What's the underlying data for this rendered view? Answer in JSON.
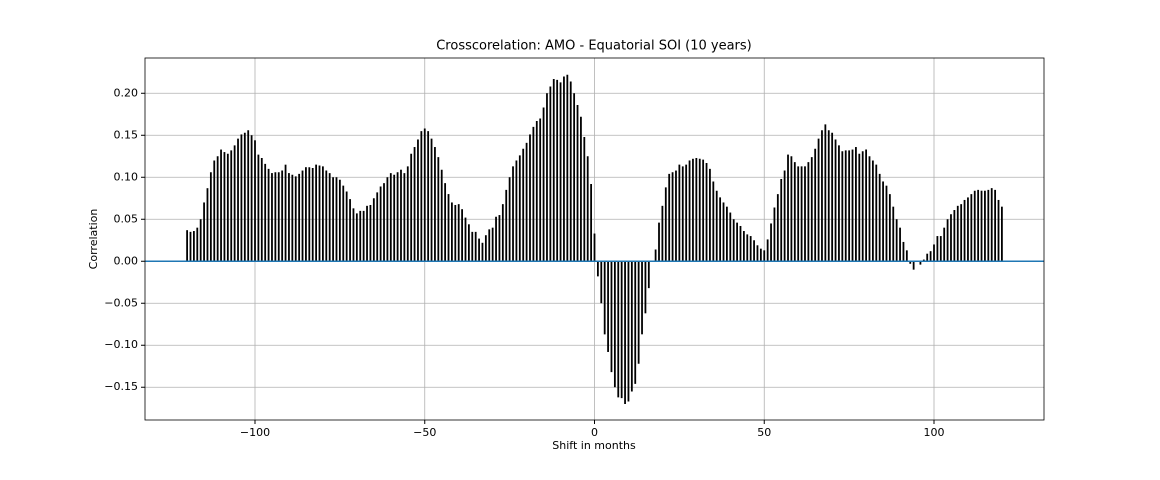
{
  "chart_data": {
    "type": "stem",
    "title": "Crosscorelation: AMO - Equatorial SOI (10 years)",
    "x_label": "Shift in months",
    "y_label": "Correlation",
    "color": "#000000",
    "zero_line_color": "#1f77b4",
    "grid": true,
    "xlim": [
      -132.4,
      132.4
    ],
    "ylim": [
      -0.189,
      0.242
    ],
    "xticks": [
      {
        "value": -100,
        "label": "−100"
      },
      {
        "value": -50,
        "label": "−50"
      },
      0,
      50,
      100
    ],
    "yticks": [
      {
        "value": -0.15,
        "label": "−0.15"
      },
      {
        "value": -0.1,
        "label": "−0.10"
      },
      {
        "value": -0.05,
        "label": "−0.05"
      },
      {
        "value": 0,
        "label": "0.00"
      },
      {
        "value": 0.05,
        "label": "0.05"
      },
      {
        "value": 0.1,
        "label": "0.10"
      },
      {
        "value": 0.15,
        "label": "0.15"
      },
      {
        "value": 0.2,
        "label": "0.20"
      }
    ],
    "x": [
      -120,
      -119,
      -118,
      -117,
      -116,
      -115,
      -114,
      -113,
      -112,
      -111,
      -110,
      -109,
      -108,
      -107,
      -106,
      -105,
      -104,
      -103,
      -102,
      -101,
      -100,
      -99,
      -98,
      -97,
      -96,
      -95,
      -94,
      -93,
      -92,
      -91,
      -90,
      -89,
      -88,
      -87,
      -86,
      -85,
      -84,
      -83,
      -82,
      -81,
      -80,
      -79,
      -78,
      -77,
      -76,
      -75,
      -74,
      -73,
      -72,
      -71,
      -70,
      -69,
      -68,
      -67,
      -66,
      -65,
      -64,
      -63,
      -62,
      -61,
      -60,
      -59,
      -58,
      -57,
      -56,
      -55,
      -54,
      -53,
      -52,
      -51,
      -50,
      -49,
      -48,
      -47,
      -46,
      -45,
      -44,
      -43,
      -42,
      -41,
      -40,
      -39,
      -38,
      -37,
      -36,
      -35,
      -34,
      -33,
      -32,
      -31,
      -30,
      -29,
      -28,
      -27,
      -26,
      -25,
      -24,
      -23,
      -22,
      -21,
      -20,
      -19,
      -18,
      -17,
      -16,
      -15,
      -14,
      -13,
      -12,
      -11,
      -10,
      -9,
      -8,
      -7,
      -6,
      -5,
      -4,
      -3,
      -2,
      -1,
      0,
      1,
      2,
      3,
      4,
      5,
      6,
      7,
      8,
      9,
      10,
      11,
      12,
      13,
      14,
      15,
      16,
      17,
      18,
      19,
      20,
      21,
      22,
      23,
      24,
      25,
      26,
      27,
      28,
      29,
      30,
      31,
      32,
      33,
      34,
      35,
      36,
      37,
      38,
      39,
      40,
      41,
      42,
      43,
      44,
      45,
      46,
      47,
      48,
      49,
      50,
      51,
      52,
      53,
      54,
      55,
      56,
      57,
      58,
      59,
      60,
      61,
      62,
      63,
      64,
      65,
      66,
      67,
      68,
      69,
      70,
      71,
      72,
      73,
      74,
      75,
      76,
      77,
      78,
      79,
      80,
      81,
      82,
      83,
      84,
      85,
      86,
      87,
      88,
      89,
      90,
      91,
      92,
      93,
      94,
      95,
      96,
      97,
      98,
      99,
      100,
      101,
      102,
      103,
      104,
      105,
      106,
      107,
      108,
      109,
      110,
      111,
      112,
      113,
      114,
      115,
      116,
      117,
      118,
      119,
      120
    ],
    "values": [
      0.037,
      0.035,
      0.036,
      0.04,
      0.05,
      0.07,
      0.087,
      0.106,
      0.12,
      0.125,
      0.133,
      0.13,
      0.128,
      0.132,
      0.138,
      0.146,
      0.151,
      0.153,
      0.156,
      0.15,
      0.144,
      0.127,
      0.123,
      0.116,
      0.11,
      0.105,
      0.106,
      0.106,
      0.108,
      0.115,
      0.105,
      0.103,
      0.101,
      0.104,
      0.108,
      0.112,
      0.112,
      0.111,
      0.115,
      0.114,
      0.113,
      0.108,
      0.105,
      0.1,
      0.1,
      0.097,
      0.09,
      0.083,
      0.074,
      0.063,
      0.057,
      0.06,
      0.06,
      0.066,
      0.067,
      0.075,
      0.082,
      0.089,
      0.093,
      0.1,
      0.105,
      0.103,
      0.106,
      0.109,
      0.105,
      0.113,
      0.128,
      0.136,
      0.145,
      0.155,
      0.158,
      0.155,
      0.146,
      0.136,
      0.124,
      0.109,
      0.093,
      0.08,
      0.07,
      0.067,
      0.068,
      0.062,
      0.052,
      0.044,
      0.035,
      0.035,
      0.027,
      0.022,
      0.031,
      0.038,
      0.04,
      0.053,
      0.055,
      0.068,
      0.085,
      0.1,
      0.113,
      0.12,
      0.126,
      0.134,
      0.141,
      0.151,
      0.16,
      0.167,
      0.17,
      0.183,
      0.2,
      0.208,
      0.217,
      0.216,
      0.213,
      0.22,
      0.222,
      0.214,
      0.2,
      0.186,
      0.172,
      0.148,
      0.125,
      0.092,
      0.033,
      -0.018,
      -0.05,
      -0.087,
      -0.108,
      -0.132,
      -0.15,
      -0.162,
      -0.163,
      -0.17,
      -0.167,
      -0.155,
      -0.146,
      -0.122,
      -0.087,
      -0.062,
      -0.032,
      0.0,
      0.014,
      0.046,
      0.066,
      0.088,
      0.104,
      0.106,
      0.108,
      0.115,
      0.113,
      0.115,
      0.12,
      0.122,
      0.123,
      0.122,
      0.121,
      0.117,
      0.11,
      0.095,
      0.084,
      0.076,
      0.07,
      0.065,
      0.058,
      0.05,
      0.046,
      0.042,
      0.036,
      0.032,
      0.03,
      0.025,
      0.019,
      0.015,
      0.013,
      0.026,
      0.045,
      0.064,
      0.08,
      0.098,
      0.108,
      0.127,
      0.125,
      0.118,
      0.113,
      0.113,
      0.113,
      0.118,
      0.124,
      0.134,
      0.146,
      0.156,
      0.163,
      0.156,
      0.153,
      0.145,
      0.138,
      0.131,
      0.132,
      0.132,
      0.133,
      0.136,
      0.128,
      0.131,
      0.133,
      0.125,
      0.12,
      0.115,
      0.104,
      0.095,
      0.09,
      0.08,
      0.065,
      0.05,
      0.04,
      0.023,
      0.013,
      -0.003,
      -0.01,
      0.0,
      -0.004,
      0.002,
      0.009,
      0.012,
      0.02,
      0.03,
      0.03,
      0.04,
      0.05,
      0.056,
      0.061,
      0.066,
      0.068,
      0.073,
      0.076,
      0.08,
      0.084,
      0.085,
      0.084,
      0.084,
      0.085,
      0.087,
      0.085,
      0.073,
      0.065
    ]
  }
}
